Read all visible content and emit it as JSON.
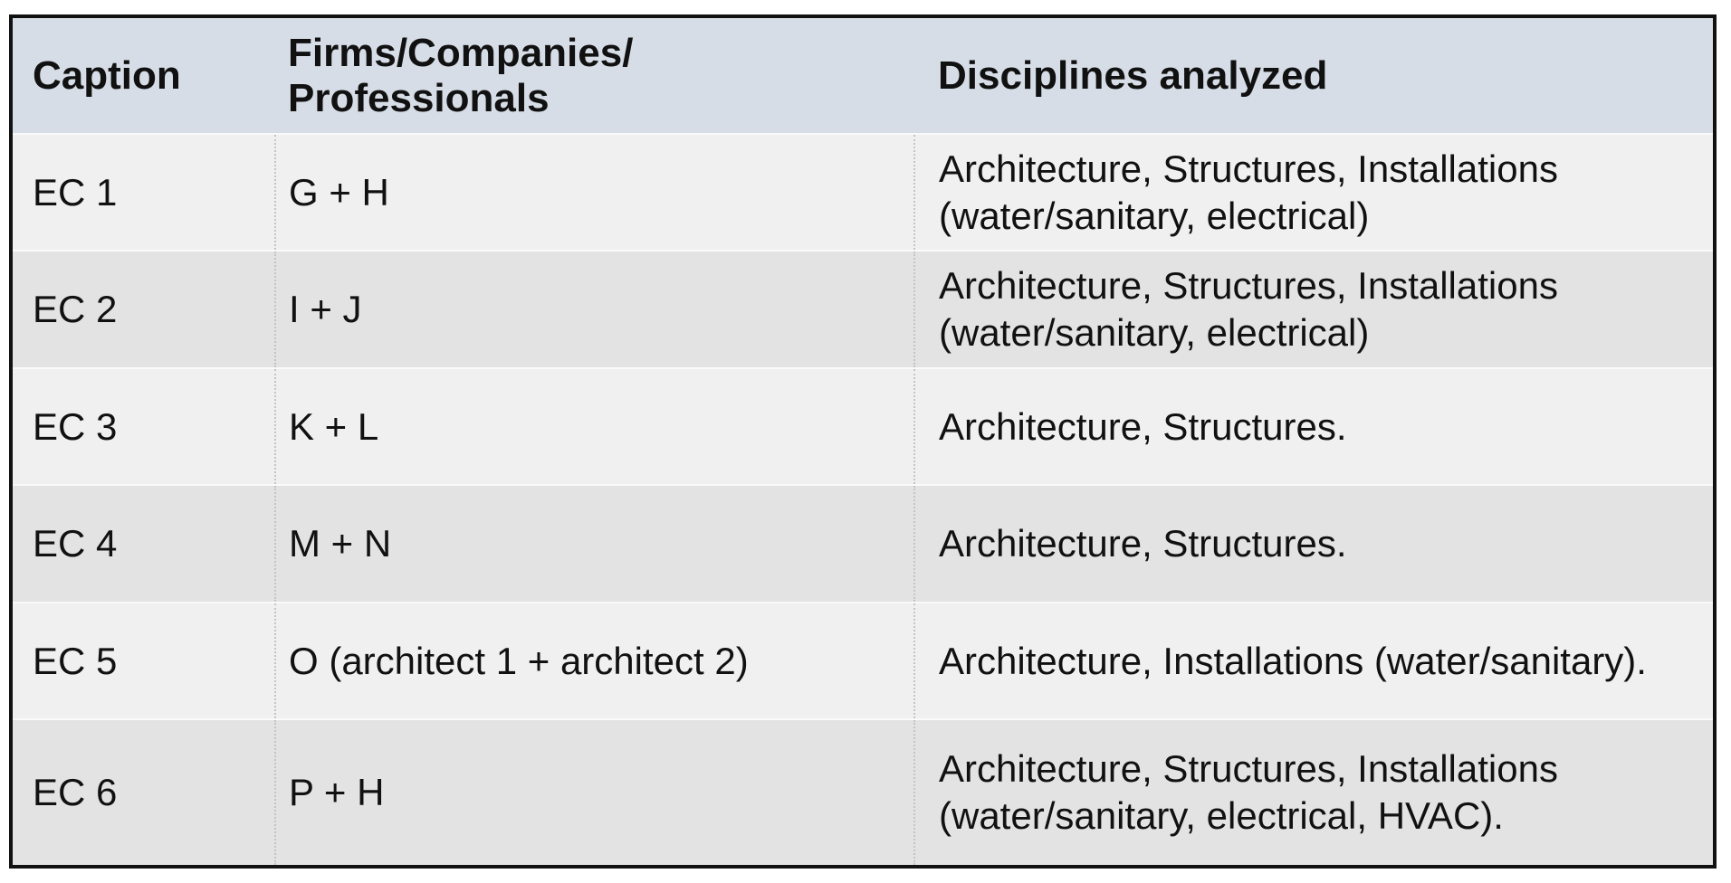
{
  "table": {
    "headers": [
      "Caption",
      "Firms/Companies/ Professionals",
      "Disciplines analyzed"
    ],
    "rows": [
      [
        "EC 1",
        "G + H",
        "Architecture, Structures, Installations (water/sanitary, electrical)"
      ],
      [
        "EC 2",
        "I + J",
        "Architecture, Structures, Installations (water/sanitary, electrical)"
      ],
      [
        "EC 3",
        "K + L",
        "Architecture, Structures."
      ],
      [
        "EC 4",
        "M + N",
        "Architecture, Structures."
      ],
      [
        "EC 5",
        "O (architect 1 + architect 2)",
        "Architecture, Installations (water/sanitary)."
      ],
      [
        "EC 6",
        "P + H",
        "Architecture, Structures, Installations (water/sanitary, electrical, HVAC)."
      ]
    ]
  },
  "colors": {
    "header_bg": "#d6dde6",
    "row_light": "#f0f0f0",
    "row_dark": "#e3e3e3",
    "border": "#111111"
  }
}
